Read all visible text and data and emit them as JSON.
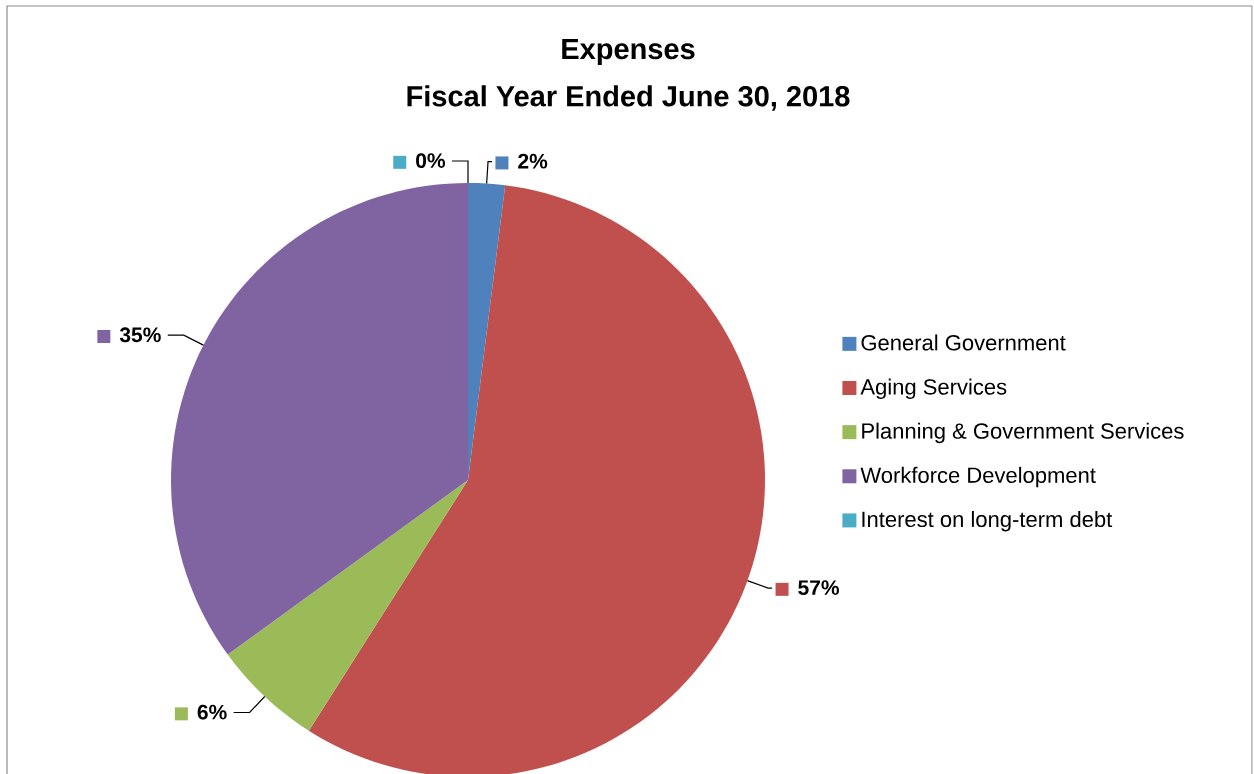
{
  "chart_data": {
    "type": "pie",
    "title": "Expenses",
    "subtitle": "Fiscal Year Ended June 30, 2018",
    "categories": [
      "General Government",
      "Aging Services",
      "Planning & Government Services",
      "Workforce Development",
      "Interest on long-term debt"
    ],
    "values": [
      2,
      57,
      6,
      35,
      0
    ],
    "value_labels": [
      "2%",
      "57%",
      "6%",
      "35%",
      "0%"
    ],
    "colors": [
      "#4f81bd",
      "#c0504d",
      "#9bbb59",
      "#8064a2",
      "#4bacc6"
    ],
    "legend": "right"
  }
}
